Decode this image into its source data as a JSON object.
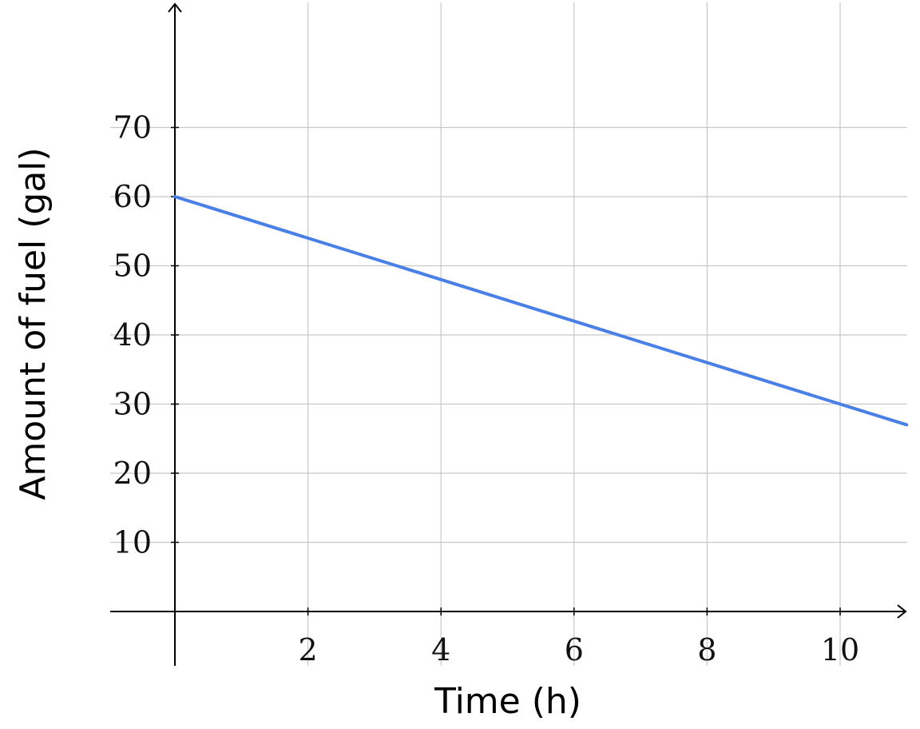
{
  "chart_data": {
    "type": "line",
    "title": "",
    "xlabel": "Time (h)",
    "ylabel": "Amount of fuel (gal)",
    "xlim": [
      0,
      11
    ],
    "ylim": [
      0,
      70
    ],
    "x_ticks": [
      2,
      4,
      6,
      8,
      10
    ],
    "y_ticks": [
      10,
      20,
      30,
      40,
      50,
      60,
      70
    ],
    "grid": true,
    "series": [
      {
        "color": "#4a7fe6",
        "x": [
          0,
          11
        ],
        "y": [
          60,
          27
        ]
      }
    ]
  }
}
